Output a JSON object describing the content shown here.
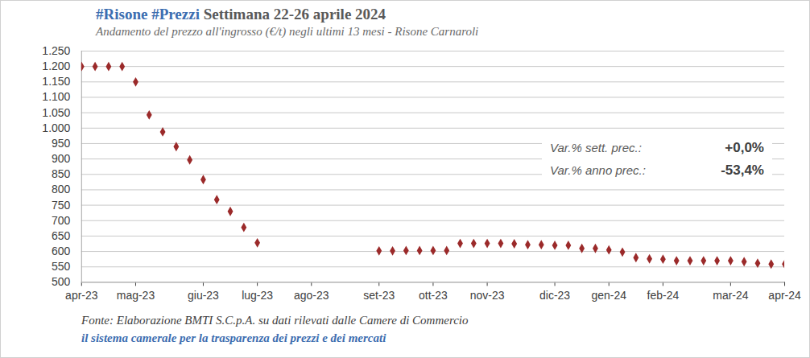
{
  "chart_data": {
    "type": "scatter",
    "title": "#Risone #Prezzi Settimana 22-26 aprile 2024",
    "subtitle": "Andamento del prezzo all'ingrosso (€/t) negli ultimi 13 mesi - Risone Carnaroli",
    "source": "Fonte: Elaborazione BMTI S.C.p.A. su dati rilevati dalle Camere di Commercio",
    "caption": "il sistema camerale per la trasparenza dei prezzi e dei mercati",
    "annotations": [
      [
        "Var.% sett. prec.:",
        "+0,0%"
      ],
      [
        "Var.% anno prec.:",
        "-53,4%"
      ]
    ],
    "categories": [
      "apr-23",
      null,
      null,
      null,
      "mag-23",
      null,
      null,
      null,
      null,
      "giu-23",
      null,
      null,
      null,
      "lug-23",
      null,
      null,
      null,
      "ago-23",
      null,
      null,
      null,
      null,
      "set-23",
      null,
      null,
      null,
      "ott-23",
      null,
      null,
      null,
      "nov-23",
      null,
      null,
      null,
      null,
      "dic-23",
      null,
      null,
      null,
      "gen-24",
      null,
      null,
      null,
      "feb-24",
      null,
      null,
      null,
      null,
      "mar-24",
      null,
      null,
      null,
      "apr-24"
    ],
    "values": [
      1200,
      1200,
      1200,
      1200,
      1150,
      1043,
      988,
      940,
      897,
      833,
      768,
      730,
      678,
      628,
      null,
      null,
      null,
      null,
      null,
      null,
      null,
      null,
      602,
      602,
      603,
      603,
      603,
      603,
      626,
      626,
      626,
      626,
      625,
      622,
      622,
      620,
      620,
      610,
      610,
      605,
      598,
      580,
      576,
      575,
      570,
      570,
      570,
      570,
      570,
      567,
      562,
      559,
      559
    ],
    "color": "#9b2a2a",
    "marker": "diamond",
    "ylim": [
      500,
      1250
    ],
    "yticks": [
      500,
      550,
      600,
      650,
      700,
      750,
      800,
      850,
      900,
      950,
      {
        "value": 1000,
        "label": "1.000"
      },
      {
        "value": 1050,
        "label": "1.050"
      },
      {
        "value": 1100,
        "label": "1.100"
      },
      {
        "value": 1150,
        "label": "1.150"
      },
      {
        "value": 1200,
        "label": "1.200"
      },
      {
        "value": 1250,
        "label": "1.250"
      }
    ],
    "grid": true
  }
}
